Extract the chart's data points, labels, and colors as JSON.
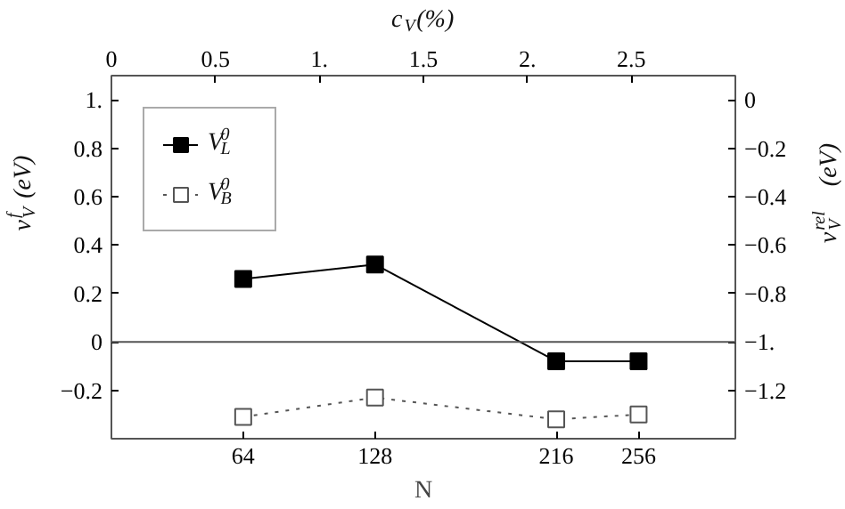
{
  "chart_data": {
    "type": "line",
    "xlabel": "N",
    "ylabel": "v$_{V}$$^{f}$ (eV)",
    "y2label": "v$_{V}$$^{rel}$ (eV)",
    "x2label": "c$_{V}$(%)",
    "x": [
      64,
      128,
      216,
      256
    ],
    "series": [
      {
        "name": "V$^{0}$$_{L}$",
        "color": "#000000",
        "values": [
          0.26,
          0.32,
          -0.08,
          -0.08
        ],
        "marker": "square",
        "line_style": "solid"
      },
      {
        "name": "V$^{0}$$_{B}$",
        "color": "#555555",
        "values": [
          -0.31,
          -0.23,
          -0.32,
          -0.3
        ],
        "marker": "square",
        "line_style": "dotted"
      }
    ],
    "xlim": [
      0,
      303
    ],
    "xticks": [
      64,
      128,
      216,
      256
    ],
    "ylim": [
      -0.4,
      1.1
    ],
    "yticks": [
      -0.2,
      0,
      0.2,
      0.4,
      0.6,
      0.8,
      {
        "value": 1,
        "label": "1."
      }
    ],
    "y2lim": [
      -1.4,
      0.1
    ],
    "y2ticks": [
      -1.2,
      {
        "value": -1,
        "label": "−1."
      },
      -0.8,
      -0.6,
      -0.4,
      -0.2,
      0
    ],
    "x2lim": [
      0,
      3
    ],
    "x2ticks": [
      0,
      0.5,
      {
        "value": 1,
        "label": "1."
      },
      1.5,
      {
        "value": 2,
        "label": "2."
      },
      2.5
    ],
    "ref_lines": [
      {
        "axis": "y",
        "value": 0,
        "color": "#555555"
      }
    ],
    "legend": "top left",
    "grid": false
  }
}
